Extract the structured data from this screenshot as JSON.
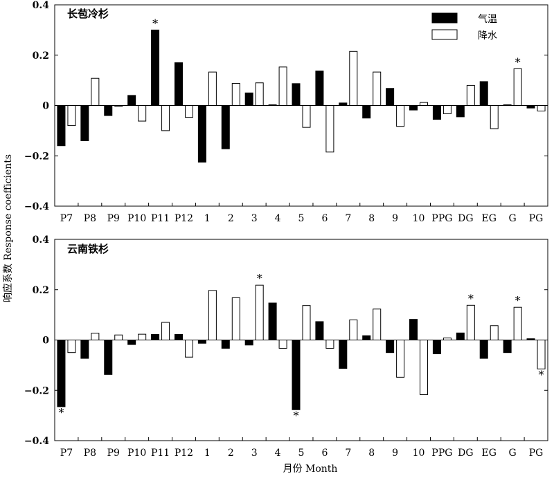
{
  "chart_data": [
    {
      "type": "bar",
      "title": "长苞冷杉",
      "categories": [
        "P7",
        "P8",
        "P9",
        "P10",
        "P11",
        "P12",
        "1",
        "2",
        "3",
        "4",
        "5",
        "6",
        "7",
        "8",
        "9",
        "10",
        "PPG",
        "DG",
        "EG",
        "G",
        "PG"
      ],
      "ylim": [
        -0.4,
        0.4
      ],
      "yticks": [
        -0.4,
        -0.2,
        0,
        0.2,
        0.4
      ],
      "series": [
        {
          "name": "气温",
          "color": "#000000",
          "values": [
            -0.16,
            -0.14,
            -0.04,
            0.04,
            0.3,
            0.17,
            -0.225,
            -0.172,
            0.05,
            0.003,
            0.087,
            0.137,
            0.01,
            -0.05,
            0.068,
            -0.018,
            -0.055,
            -0.045,
            0.095,
            0.003,
            -0.01
          ],
          "significant": [
            "P11"
          ]
        },
        {
          "name": "降水",
          "color": "#ffffff",
          "values": [
            -0.08,
            0.108,
            -0.003,
            -0.062,
            -0.1,
            -0.047,
            0.133,
            0.088,
            0.09,
            0.153,
            -0.087,
            -0.185,
            0.215,
            0.133,
            -0.083,
            0.012,
            -0.033,
            0.08,
            -0.092,
            0.146,
            -0.022
          ],
          "significant": [
            "G"
          ]
        }
      ]
    },
    {
      "type": "bar",
      "title": "云南铁杉",
      "categories": [
        "P7",
        "P8",
        "P9",
        "P10",
        "P11",
        "P12",
        "1",
        "2",
        "3",
        "4",
        "5",
        "6",
        "7",
        "8",
        "9",
        "10",
        "PPG",
        "DG",
        "EG",
        "G",
        "PG"
      ],
      "ylim": [
        -0.4,
        0.4
      ],
      "yticks": [
        -0.4,
        -0.2,
        0,
        0.2,
        0.4
      ],
      "series": [
        {
          "name": "气温",
          "color": "#000000",
          "values": [
            -0.265,
            -0.073,
            -0.137,
            -0.018,
            0.022,
            0.022,
            -0.013,
            -0.033,
            -0.02,
            0.147,
            -0.277,
            0.073,
            -0.113,
            0.017,
            -0.05,
            0.082,
            -0.055,
            0.028,
            -0.073,
            -0.05,
            0.005
          ],
          "significant": [
            "P7",
            "5"
          ]
        },
        {
          "name": "降水",
          "color": "#ffffff",
          "values": [
            -0.05,
            0.027,
            0.02,
            0.023,
            0.07,
            -0.068,
            0.197,
            0.168,
            0.218,
            -0.033,
            0.137,
            -0.033,
            0.08,
            0.123,
            -0.148,
            -0.217,
            0.008,
            0.138,
            0.057,
            0.13,
            -0.115
          ],
          "significant": [
            "3",
            "DG",
            "G",
            "PG"
          ]
        }
      ]
    }
  ],
  "legend": {
    "position": "top-right",
    "items": [
      {
        "label": "气温",
        "color": "#000000"
      },
      {
        "label": "降水",
        "color": "#ffffff"
      }
    ]
  },
  "ylabel": "响应系数 Response coefficients",
  "xlabel": "月份 Month",
  "star_symbol": "*",
  "ytick_labels": [
    "−0.4",
    "−0.2",
    "0",
    "0.2",
    "0.4"
  ]
}
